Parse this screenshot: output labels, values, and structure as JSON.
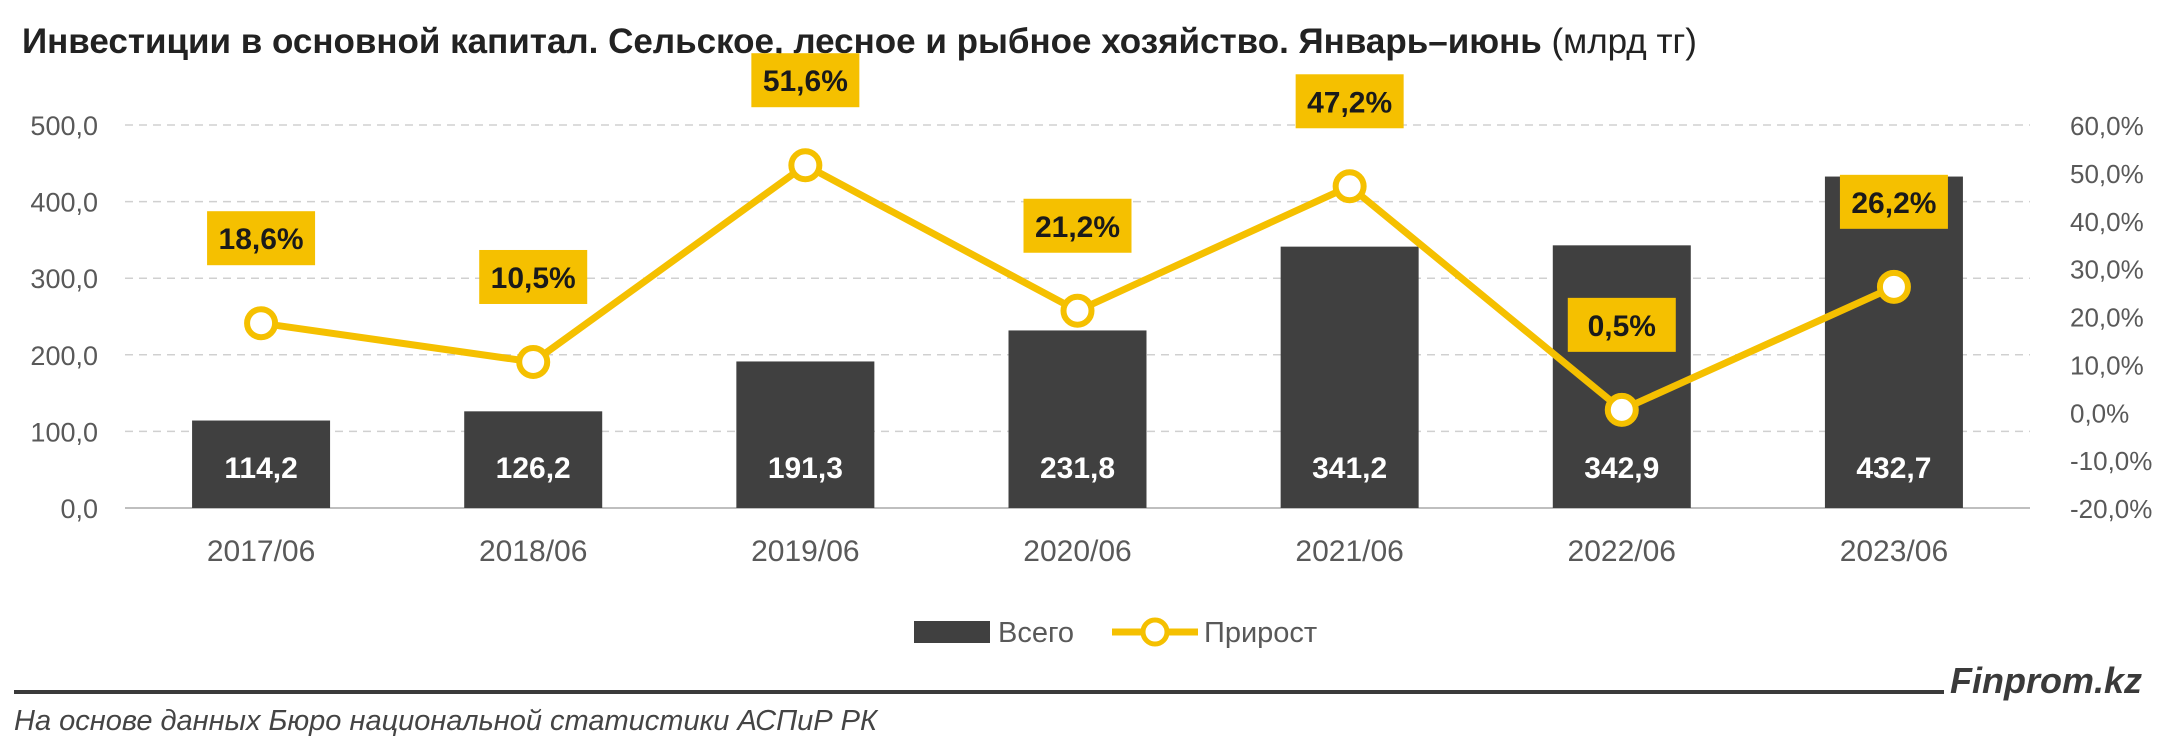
{
  "title": {
    "main": "Инвестиции в основной капитал. Сельское, лесное и рыбное хозяйство. Январь–июнь",
    "unit": "(млрд тг)"
  },
  "footer": {
    "source": "На основе данных Бюро национальной статистики АСПиР РК",
    "brand": "Finprom.kz"
  },
  "colors": {
    "bar": "#404040",
    "line": "#F5C000",
    "label_bg": "#F5C000",
    "grid": "#d0d0d0",
    "axis_text": "#595959"
  },
  "chart_data": {
    "type": "bar+line",
    "categories": [
      "2017/06",
      "2018/06",
      "2019/06",
      "2020/06",
      "2021/06",
      "2022/06",
      "2023/06"
    ],
    "series": [
      {
        "name": "Всего",
        "type": "bar",
        "axis": "left",
        "values": [
          114.2,
          126.2,
          191.3,
          231.8,
          341.2,
          342.9,
          432.7
        ],
        "labels": [
          "114,2",
          "126,2",
          "191,3",
          "231,8",
          "341,2",
          "342,9",
          "432,7"
        ]
      },
      {
        "name": "Прирост",
        "type": "line",
        "axis": "right",
        "values": [
          18.6,
          10.5,
          51.6,
          21.2,
          47.2,
          0.5,
          26.2
        ],
        "labels": [
          "18,6%",
          "10,5%",
          "51,6%",
          "21,2%",
          "47,2%",
          "0,5%",
          "26,2%"
        ]
      }
    ],
    "y_left": {
      "range": [
        0,
        500
      ],
      "ticks": [
        "0,0",
        "100,0",
        "200,0",
        "300,0",
        "400,0",
        "500,0"
      ]
    },
    "y_right": {
      "range": [
        -20,
        60
      ],
      "ticks": [
        "-20,0%",
        "-10,0%",
        "0,0%",
        "10,0%",
        "20,0%",
        "30,0%",
        "40,0%",
        "50,0%",
        "60,0%"
      ]
    },
    "grid": true,
    "legend_position": "bottom"
  }
}
